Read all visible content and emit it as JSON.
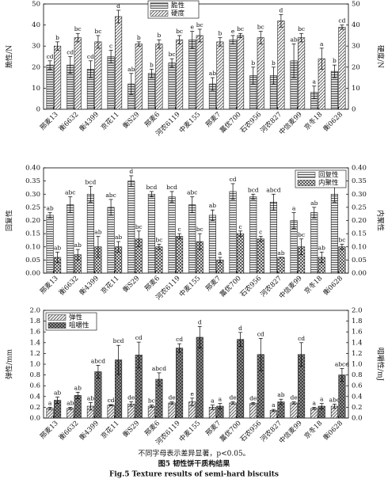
{
  "chart_data": [
    {
      "type": "bar",
      "categories": [
        "邢麦13",
        "衡6632",
        "衡4399",
        "京花11",
        "衡S29",
        "邢麦6",
        "河农6119",
        "中麦155",
        "邢麦7",
        "藁优700",
        "石农956",
        "河农827",
        "中信麦99",
        "京冬18",
        "衡0628"
      ],
      "ylabel": "脆性/N",
      "y2label": "硬度/N",
      "ylim": [
        0,
        50
      ],
      "yticks": [
        0,
        10,
        20,
        30,
        40,
        50
      ],
      "y2lim": [
        0,
        50
      ],
      "y2ticks": [
        0,
        10,
        20,
        30,
        40,
        50
      ],
      "legend": "top-center",
      "series": [
        {
          "name": "脆性",
          "color": "#d9d9d9",
          "pattern": "hlines",
          "values": [
            21,
            21,
            19,
            25,
            12,
            17,
            22,
            33,
            12,
            33,
            16,
            16,
            23,
            8,
            18
          ],
          "errors": [
            2,
            4,
            4,
            3,
            5,
            2,
            2,
            4,
            3,
            2,
            4,
            4,
            8,
            3,
            3
          ],
          "letters": [
            "cd",
            "cd",
            "cd",
            "c",
            "ab",
            "b",
            "bc",
            "e",
            "ab",
            "e",
            "b",
            "b",
            "ab",
            "a",
            "b"
          ]
        },
        {
          "name": "硬度",
          "axis": "y2",
          "color": "#f2f2f2",
          "pattern": "diag",
          "values": [
            30,
            34,
            32,
            44,
            31,
            31,
            33,
            35,
            32,
            35,
            34,
            42,
            34,
            24,
            39
          ],
          "errors": [
            2,
            2,
            3,
            3,
            1,
            2,
            2,
            3,
            2,
            1,
            3,
            3,
            2,
            5,
            1
          ],
          "letters": [
            "b",
            "bc",
            "bc",
            "d",
            "b",
            "b",
            "bc",
            "bc",
            "b",
            "bc",
            "bc",
            "d",
            "bc",
            "a",
            "cd"
          ]
        }
      ]
    },
    {
      "type": "bar",
      "categories": [
        "邢麦13",
        "衡6632",
        "衡4399",
        "京花11",
        "衡S29",
        "邢麦6",
        "河农6119",
        "中麦155",
        "邢麦7",
        "藁优700",
        "石农956",
        "河农827",
        "中信麦99",
        "京冬18",
        "衡0628"
      ],
      "ylabel": "回复性",
      "y2label": "内聚性",
      "ylim": [
        0,
        0.4
      ],
      "yticks": [
        {
          "value": 0,
          "label": "0.00"
        },
        0.05,
        {
          "value": 0.1,
          "label": "0.10"
        },
        0.15,
        {
          "value": 0.2,
          "label": "0.20"
        },
        0.25,
        {
          "value": 0.3,
          "label": "0.30"
        },
        0.35,
        {
          "value": 0.4,
          "label": "0.40"
        }
      ],
      "y2lim": [
        0,
        0.4
      ],
      "y2ticks": [
        {
          "value": 0,
          "label": "0.00"
        },
        0.05,
        {
          "value": 0.1,
          "label": "0.10"
        },
        0.15,
        {
          "value": 0.2,
          "label": "0.20"
        },
        0.25,
        {
          "value": 0.3,
          "label": "0.30"
        },
        0.35,
        {
          "value": 0.4,
          "label": "0.40"
        }
      ],
      "legend": "top-right",
      "series": [
        {
          "name": "回复性",
          "color": "#e6e6e6",
          "pattern": "hlines",
          "values": [
            0.22,
            0.26,
            0.3,
            0.25,
            0.35,
            0.3,
            0.29,
            0.26,
            0.22,
            0.31,
            0.29,
            0.27,
            0.2,
            0.23,
            0.3
          ],
          "errors": [
            0.01,
            0.03,
            0.03,
            0.03,
            0.02,
            0.01,
            0.02,
            0.03,
            0.02,
            0.03,
            0.01,
            0.03,
            0.03,
            0.02,
            0.03
          ],
          "letters": [
            "ab",
            "abc",
            "bcd",
            "abc",
            "d",
            "bcd",
            "bcd",
            "abc",
            "ab",
            "cd",
            "bcd",
            "abcd",
            "a",
            "ab",
            "bcd"
          ]
        },
        {
          "name": "内聚性",
          "axis": "y2",
          "color": "#f2f2f2",
          "pattern": "cross",
          "values": [
            0.06,
            0.07,
            0.1,
            0.1,
            0.13,
            0.1,
            0.14,
            0.12,
            0.05,
            0.15,
            0.13,
            0.06,
            0.1,
            0.06,
            0.1
          ],
          "errors": [
            0.02,
            0.02,
            0.04,
            0.02,
            0.03,
            0.01,
            0.01,
            0.03,
            0.01,
            0.01,
            0.01,
            0.0,
            0.03,
            0.02,
            0.01
          ],
          "letters": [
            "ab",
            "ab",
            "ab",
            "ab",
            "bc",
            "bc",
            "c",
            "bc",
            "a",
            "c",
            "c",
            "ab",
            "bc",
            "ab",
            "bc"
          ]
        }
      ]
    },
    {
      "type": "bar",
      "categories": [
        "邢麦13",
        "衡6632",
        "衡4399",
        "京花11",
        "衡S29",
        "邢麦6",
        "河农6119",
        "中麦155",
        "邢麦7",
        "藁优700",
        "石农956",
        "河农827",
        "中信麦99",
        "京冬18",
        "衡0628"
      ],
      "ylabel": "弹性/mm",
      "y2label": "咀嚼性/mJ",
      "ylim": [
        0,
        2
      ],
      "yticks": [
        {
          "value": 0,
          "label": "0.0"
        },
        0.2,
        0.4,
        0.6,
        0.8,
        {
          "value": 1,
          "label": "1.0"
        },
        1.2,
        1.4,
        1.6,
        1.8,
        {
          "value": 2,
          "label": "2.0"
        }
      ],
      "y2lim": [
        0,
        2
      ],
      "y2ticks": [
        {
          "value": 0,
          "label": "0.0"
        },
        0.2,
        0.4,
        0.6,
        0.8,
        {
          "value": 1,
          "label": "1.0"
        },
        1.2,
        1.4,
        1.6,
        1.8,
        {
          "value": 2,
          "label": "2.0"
        }
      ],
      "legend": "top-left",
      "series": [
        {
          "name": "弹性",
          "color": "#ededed",
          "pattern": "diag",
          "values": [
            0.18,
            0.18,
            0.22,
            0.24,
            0.26,
            0.22,
            0.28,
            0.3,
            0.2,
            0.28,
            0.27,
            0.14,
            0.28,
            0.18,
            0.22
          ],
          "errors": [
            0.02,
            0.02,
            0.07,
            0.01,
            0.04,
            0.02,
            0.02,
            0.07,
            0.04,
            0.02,
            0.02,
            0.02,
            0.02,
            0.02,
            0.04
          ],
          "letters": [
            "a",
            "ab",
            "ab",
            "cd",
            "de",
            "bc",
            "de",
            "e",
            "a",
            "de",
            "de",
            "a",
            "de",
            "a",
            "abc"
          ]
        },
        {
          "name": "咀嚼性",
          "axis": "y2",
          "color": "#9a9a9a",
          "pattern": "cross",
          "values": [
            0.33,
            0.42,
            0.86,
            1.08,
            1.17,
            0.72,
            1.3,
            1.5,
            0.22,
            1.46,
            1.18,
            0.3,
            1.18,
            0.22,
            0.8
          ],
          "errors": [
            0.06,
            0.06,
            0.12,
            0.27,
            0.24,
            0.12,
            0.08,
            0.2,
            0.05,
            0.13,
            0.3,
            0.05,
            0.22,
            0.05,
            0.12
          ],
          "letters": [
            "ab",
            "ab",
            "abcd",
            "bcd",
            "cd",
            "abcd",
            "cd",
            "d",
            "a",
            "d",
            "cd",
            "ab",
            "cd",
            "a",
            "abcd"
          ]
        }
      ]
    }
  ],
  "figure": {
    "note": "不同字母表示差异显著，p<0.05。",
    "caption": "图5  韧性饼干质构结果",
    "caption_en": "Fig.5   Texture results of semi-hard biscuits"
  }
}
